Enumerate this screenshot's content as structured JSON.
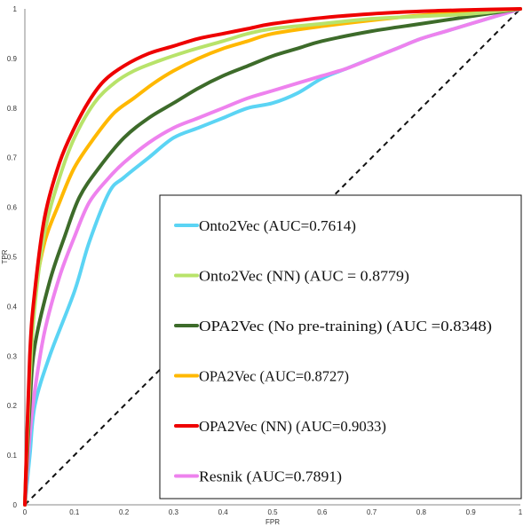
{
  "chart_data": {
    "type": "line",
    "title": "",
    "xlabel": "FPR",
    "ylabel": "TPR",
    "xlim": [
      0,
      1
    ],
    "ylim": [
      0,
      1
    ],
    "x_ticks": [
      "0",
      "0.1",
      "0.2",
      "0.3",
      "0.4",
      "0.5",
      "0.6",
      "0.7",
      "0.8",
      "0.9",
      "1"
    ],
    "y_ticks": [
      "0",
      "0.1",
      "0.2",
      "0.3",
      "0.4",
      "0.5",
      "0.6",
      "0.7",
      "0.8",
      "0.9",
      "1"
    ],
    "grid": false,
    "legend_placement": "bottom-right",
    "diagonal": {
      "style": "dashed",
      "color": "#111111",
      "x": [
        0,
        1
      ],
      "y": [
        0,
        1
      ]
    },
    "series": [
      {
        "name": "Onto2Vec (AUC=0.7614)",
        "color": "#5bd4f4",
        "x": [
          0,
          0.01,
          0.02,
          0.05,
          0.1,
          0.13,
          0.17,
          0.2,
          0.25,
          0.3,
          0.35,
          0.4,
          0.45,
          0.5,
          0.55,
          0.6,
          0.65,
          0.7,
          0.75,
          0.8,
          0.85,
          0.9,
          0.95,
          1.0
        ],
        "y": [
          0,
          0.1,
          0.2,
          0.3,
          0.43,
          0.53,
          0.63,
          0.66,
          0.7,
          0.74,
          0.76,
          0.78,
          0.8,
          0.81,
          0.83,
          0.86,
          0.88,
          0.9,
          0.92,
          0.94,
          0.955,
          0.97,
          0.985,
          1.0
        ]
      },
      {
        "name": "Onto2Vec (NN) (AUC = 0.8779)",
        "color": "#b8e36a",
        "x": [
          0,
          0.01,
          0.02,
          0.04,
          0.07,
          0.1,
          0.14,
          0.18,
          0.22,
          0.27,
          0.33,
          0.4,
          0.45,
          0.5,
          0.6,
          0.7,
          0.8,
          0.9,
          1.0
        ],
        "y": [
          0,
          0.25,
          0.4,
          0.55,
          0.66,
          0.74,
          0.81,
          0.85,
          0.875,
          0.895,
          0.915,
          0.935,
          0.95,
          0.96,
          0.97,
          0.98,
          0.985,
          0.99,
          1.0
        ]
      },
      {
        "name": "OPA2Vec (No pre-training) (AUC =0.8348)",
        "color": "#3d6b2a",
        "x": [
          0,
          0.01,
          0.02,
          0.05,
          0.08,
          0.11,
          0.15,
          0.2,
          0.25,
          0.3,
          0.35,
          0.4,
          0.45,
          0.5,
          0.55,
          0.6,
          0.7,
          0.8,
          0.9,
          1.0
        ],
        "y": [
          0,
          0.2,
          0.32,
          0.45,
          0.54,
          0.62,
          0.68,
          0.74,
          0.78,
          0.81,
          0.84,
          0.865,
          0.885,
          0.905,
          0.92,
          0.935,
          0.955,
          0.97,
          0.985,
          1.0
        ]
      },
      {
        "name": "OPA2Vec (AUC=0.8727)",
        "color": "#ffb800",
        "x": [
          0,
          0.01,
          0.02,
          0.04,
          0.07,
          0.1,
          0.14,
          0.18,
          0.22,
          0.26,
          0.3,
          0.35,
          0.4,
          0.45,
          0.5,
          0.6,
          0.7,
          0.8,
          0.9,
          1.0
        ],
        "y": [
          0,
          0.28,
          0.42,
          0.53,
          0.61,
          0.68,
          0.74,
          0.79,
          0.82,
          0.85,
          0.875,
          0.9,
          0.92,
          0.935,
          0.95,
          0.965,
          0.977,
          0.987,
          0.993,
          1.0
        ]
      },
      {
        "name": "OPA2Vec (NN) (AUC=0.9033)",
        "color": "#ee0000",
        "x": [
          0,
          0.01,
          0.02,
          0.04,
          0.07,
          0.1,
          0.13,
          0.16,
          0.2,
          0.25,
          0.3,
          0.35,
          0.4,
          0.45,
          0.5,
          0.6,
          0.7,
          0.8,
          0.9,
          1.0
        ],
        "y": [
          0,
          0.3,
          0.43,
          0.58,
          0.69,
          0.76,
          0.815,
          0.855,
          0.885,
          0.91,
          0.925,
          0.94,
          0.95,
          0.96,
          0.97,
          0.982,
          0.99,
          0.995,
          0.998,
          1.0
        ]
      },
      {
        "name": "Resnik (AUC=0.7891)",
        "color": "#ee82ee",
        "x": [
          0,
          0.01,
          0.02,
          0.04,
          0.07,
          0.1,
          0.13,
          0.17,
          0.2,
          0.25,
          0.3,
          0.35,
          0.4,
          0.45,
          0.5,
          0.55,
          0.6,
          0.65,
          0.7,
          0.75,
          0.8,
          0.85,
          0.9,
          0.95,
          1.0
        ],
        "y": [
          0,
          0.14,
          0.23,
          0.35,
          0.46,
          0.54,
          0.61,
          0.66,
          0.69,
          0.73,
          0.76,
          0.78,
          0.8,
          0.82,
          0.835,
          0.85,
          0.865,
          0.88,
          0.9,
          0.92,
          0.94,
          0.955,
          0.97,
          0.985,
          1.0
        ]
      }
    ]
  }
}
